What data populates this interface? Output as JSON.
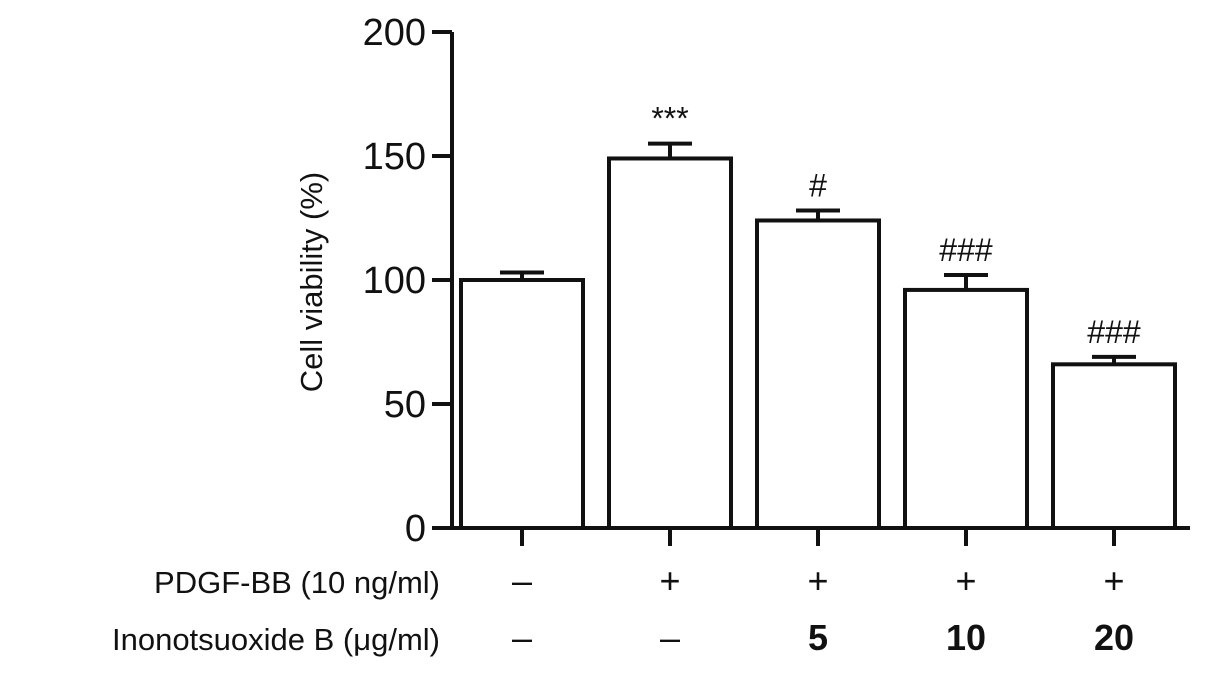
{
  "chart_data": {
    "type": "bar",
    "ylabel": "Cell viability (%)",
    "ylim": [
      0,
      200
    ],
    "yticks": [
      0,
      50,
      100,
      150,
      200
    ],
    "values": [
      100,
      149,
      124,
      96,
      66
    ],
    "errors": [
      3,
      6,
      4,
      6,
      3
    ],
    "annotations": [
      "",
      "***",
      "#",
      "###",
      "###"
    ],
    "treatment_rows": [
      {
        "label": "PDGF-BB (10 ng/ml)",
        "values": [
          "–",
          "+",
          "+",
          "+",
          "+"
        ],
        "bold": false
      },
      {
        "label": "Inonotsuoxide B (μg/ml)",
        "values": [
          "–",
          "–",
          "5",
          "10",
          "20"
        ],
        "bold": true
      }
    ],
    "grid": false,
    "colors": {
      "bar_fill": "#ffffff",
      "bar_stroke": "#111111"
    }
  }
}
